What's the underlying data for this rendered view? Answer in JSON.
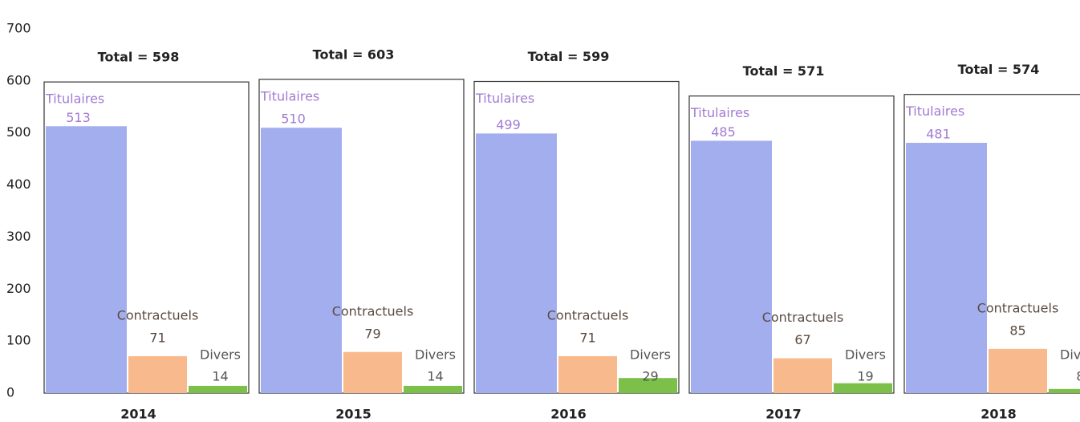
{
  "chart_data": {
    "type": "bar",
    "categories": [
      "2014",
      "2015",
      "2016",
      "2017",
      "2018"
    ],
    "series": [
      {
        "name": "Titulaires",
        "color": "#a3aeee",
        "values": [
          513,
          510,
          499,
          485,
          481
        ]
      },
      {
        "name": "Contractuels",
        "color": "#f8b98c",
        "values": [
          71,
          79,
          71,
          67,
          85
        ]
      },
      {
        "name": "Divers",
        "color": "#7cc04a",
        "values": [
          14,
          14,
          29,
          19,
          8
        ]
      }
    ],
    "totals": {
      "values": [
        598,
        603,
        599,
        571,
        574
      ],
      "value_labels": [
        "Total = 598",
        "Total = 603",
        "Total = 599",
        "Total = 571",
        "Total = 574"
      ]
    },
    "ylim": [
      0,
      700
    ],
    "yticks": [
      0,
      100,
      200,
      300,
      400,
      500,
      600,
      700
    ],
    "grid": false
  }
}
